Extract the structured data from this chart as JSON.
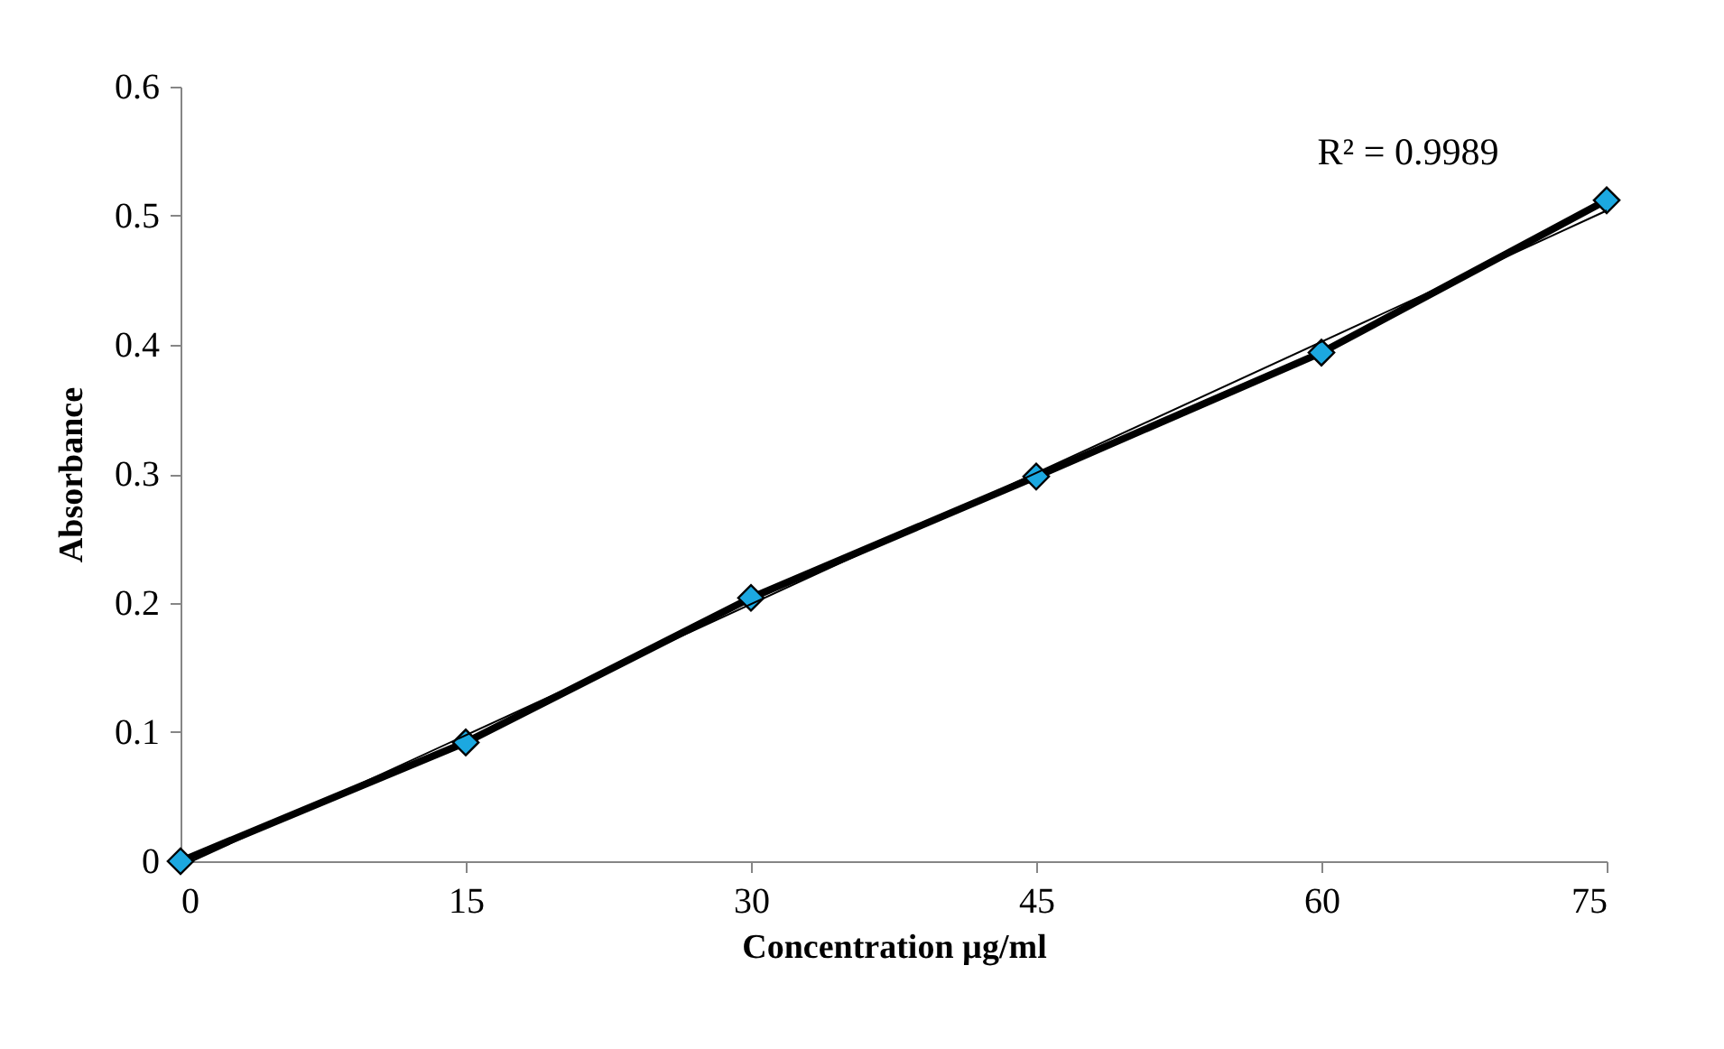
{
  "chart_data": {
    "type": "line",
    "xlabel": "Concentration µg/ml",
    "ylabel": "Absorbance",
    "x": [
      0,
      15,
      30,
      45,
      60,
      75
    ],
    "series": [
      {
        "color": "#1ca8e0",
        "values": [
          0,
          0.092,
          0.204,
          0.298,
          0.394,
          0.512
        ],
        "marker": "diamond"
      },
      {
        "type": "line",
        "color": "#000000",
        "x": [
          0.6,
          75
        ],
        "values": [
          0,
          0.504
        ],
        "marker": "none"
      }
    ],
    "xlim": [
      0,
      75
    ],
    "xticks": [
      0,
      15,
      30,
      45,
      60,
      75
    ],
    "ylim": [
      0,
      0.6
    ],
    "yticks": [
      0,
      0.1,
      0.2,
      0.3,
      0.4,
      0.5,
      0.6
    ],
    "annotations": [
      "R² = 0.9989"
    ],
    "grid": false,
    "line_style": "solid"
  }
}
